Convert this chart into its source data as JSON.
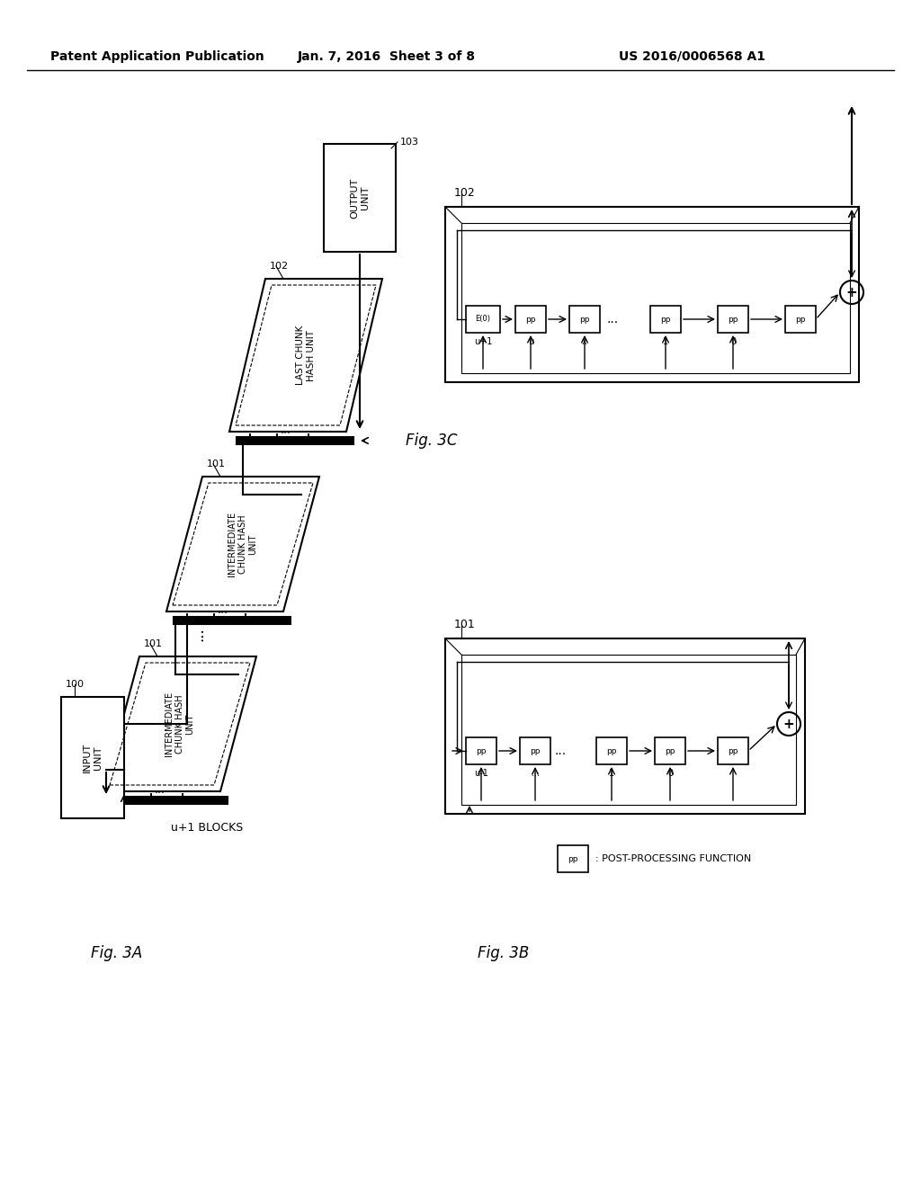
{
  "title_left": "Patent Application Publication",
  "title_center": "Jan. 7, 2016  Sheet 3 of 8",
  "title_right": "US 2016/0006568 A1",
  "fig3a_label": "Fig. 3A",
  "fig3b_label": "Fig. 3B",
  "fig3c_label": "Fig. 3C",
  "background_color": "#ffffff",
  "line_color": "#000000"
}
